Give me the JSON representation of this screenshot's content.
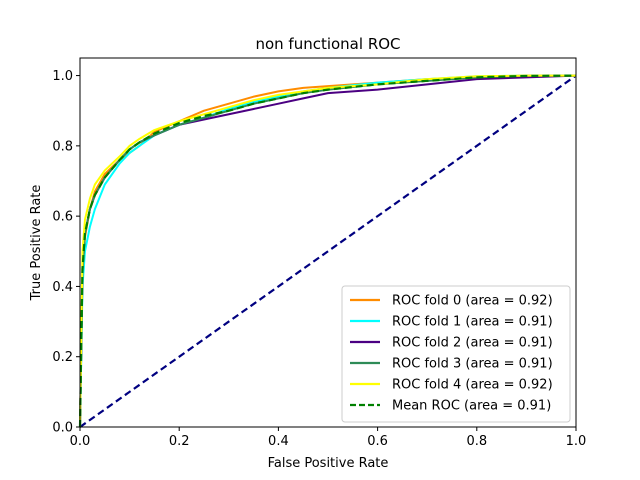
{
  "chart_data": {
    "type": "line",
    "title": "non functional ROC",
    "xlabel": "False Positive Rate",
    "ylabel": "True Positive Rate",
    "xlim": [
      0.0,
      1.0
    ],
    "ylim": [
      0.0,
      1.05
    ],
    "x_ticks": [
      "0.0",
      "0.2",
      "0.4",
      "0.6",
      "0.8",
      "1.0"
    ],
    "y_ticks": [
      "0.0",
      "0.2",
      "0.4",
      "0.6",
      "0.8",
      "1.0"
    ],
    "grid": false,
    "legend_position": "bottom-right",
    "series": [
      {
        "name": "ROC fold 0 (area = 0.92)",
        "color": "#ff8c00",
        "style": "solid",
        "x": [
          0,
          0.005,
          0.01,
          0.02,
          0.03,
          0.05,
          0.08,
          0.1,
          0.12,
          0.15,
          0.2,
          0.25,
          0.3,
          0.35,
          0.4,
          0.45,
          0.5,
          0.6,
          0.7,
          0.8,
          0.9,
          1.0
        ],
        "y": [
          0,
          0.44,
          0.54,
          0.62,
          0.67,
          0.72,
          0.76,
          0.78,
          0.8,
          0.84,
          0.87,
          0.9,
          0.92,
          0.94,
          0.955,
          0.965,
          0.97,
          0.98,
          0.99,
          0.995,
          0.998,
          1.0
        ]
      },
      {
        "name": "ROC fold 1 (area = 0.91)",
        "color": "#00ffff",
        "style": "solid",
        "x": [
          0,
          0.005,
          0.01,
          0.02,
          0.03,
          0.05,
          0.08,
          0.1,
          0.12,
          0.15,
          0.2,
          0.25,
          0.3,
          0.35,
          0.4,
          0.45,
          0.5,
          0.6,
          0.7,
          0.8,
          0.9,
          1.0
        ],
        "y": [
          0,
          0.4,
          0.5,
          0.57,
          0.62,
          0.69,
          0.75,
          0.78,
          0.8,
          0.83,
          0.86,
          0.88,
          0.905,
          0.925,
          0.94,
          0.955,
          0.965,
          0.98,
          0.99,
          0.998,
          1.0,
          1.0
        ]
      },
      {
        "name": "ROC fold 2 (area = 0.91)",
        "color": "#4b0082",
        "style": "solid",
        "x": [
          0,
          0.005,
          0.01,
          0.02,
          0.03,
          0.05,
          0.08,
          0.1,
          0.12,
          0.15,
          0.2,
          0.25,
          0.3,
          0.35,
          0.4,
          0.45,
          0.5,
          0.6,
          0.7,
          0.8,
          0.9,
          1.0
        ],
        "y": [
          0,
          0.45,
          0.55,
          0.62,
          0.66,
          0.71,
          0.76,
          0.79,
          0.81,
          0.83,
          0.86,
          0.875,
          0.89,
          0.905,
          0.92,
          0.935,
          0.95,
          0.96,
          0.975,
          0.99,
          0.995,
          1.0
        ]
      },
      {
        "name": "ROC fold 3 (area = 0.91)",
        "color": "#2e8b57",
        "style": "solid",
        "x": [
          0,
          0.005,
          0.01,
          0.02,
          0.03,
          0.05,
          0.08,
          0.1,
          0.12,
          0.15,
          0.2,
          0.25,
          0.3,
          0.35,
          0.4,
          0.45,
          0.5,
          0.6,
          0.7,
          0.8,
          0.9,
          1.0
        ],
        "y": [
          0,
          0.44,
          0.55,
          0.62,
          0.66,
          0.71,
          0.76,
          0.79,
          0.81,
          0.83,
          0.86,
          0.88,
          0.9,
          0.92,
          0.935,
          0.95,
          0.96,
          0.975,
          0.985,
          0.995,
          1.0,
          1.0
        ]
      },
      {
        "name": "ROC fold 4 (area = 0.92)",
        "color": "#ffff00",
        "style": "solid",
        "x": [
          0,
          0.005,
          0.01,
          0.02,
          0.03,
          0.05,
          0.08,
          0.1,
          0.12,
          0.15,
          0.2,
          0.25,
          0.3,
          0.35,
          0.4,
          0.45,
          0.5,
          0.6,
          0.7,
          0.8,
          0.9,
          1.0
        ],
        "y": [
          0,
          0.5,
          0.59,
          0.65,
          0.69,
          0.73,
          0.77,
          0.8,
          0.82,
          0.845,
          0.87,
          0.89,
          0.91,
          0.93,
          0.945,
          0.955,
          0.965,
          0.975,
          0.99,
          0.998,
          1.0,
          1.0
        ]
      },
      {
        "name": "Mean ROC (area = 0.91)",
        "color": "#008000",
        "style": "dashed",
        "x": [
          0,
          0.005,
          0.01,
          0.02,
          0.03,
          0.05,
          0.08,
          0.1,
          0.12,
          0.15,
          0.2,
          0.25,
          0.3,
          0.35,
          0.4,
          0.45,
          0.5,
          0.6,
          0.7,
          0.8,
          0.9,
          1.0
        ],
        "y": [
          0,
          0.45,
          0.55,
          0.62,
          0.66,
          0.71,
          0.76,
          0.79,
          0.81,
          0.835,
          0.865,
          0.885,
          0.9,
          0.92,
          0.935,
          0.95,
          0.96,
          0.975,
          0.985,
          0.995,
          0.999,
          1.0
        ]
      }
    ],
    "reference_line": {
      "color": "#000080",
      "style": "dashed",
      "x": [
        0,
        1
      ],
      "y": [
        0,
        1
      ]
    }
  }
}
